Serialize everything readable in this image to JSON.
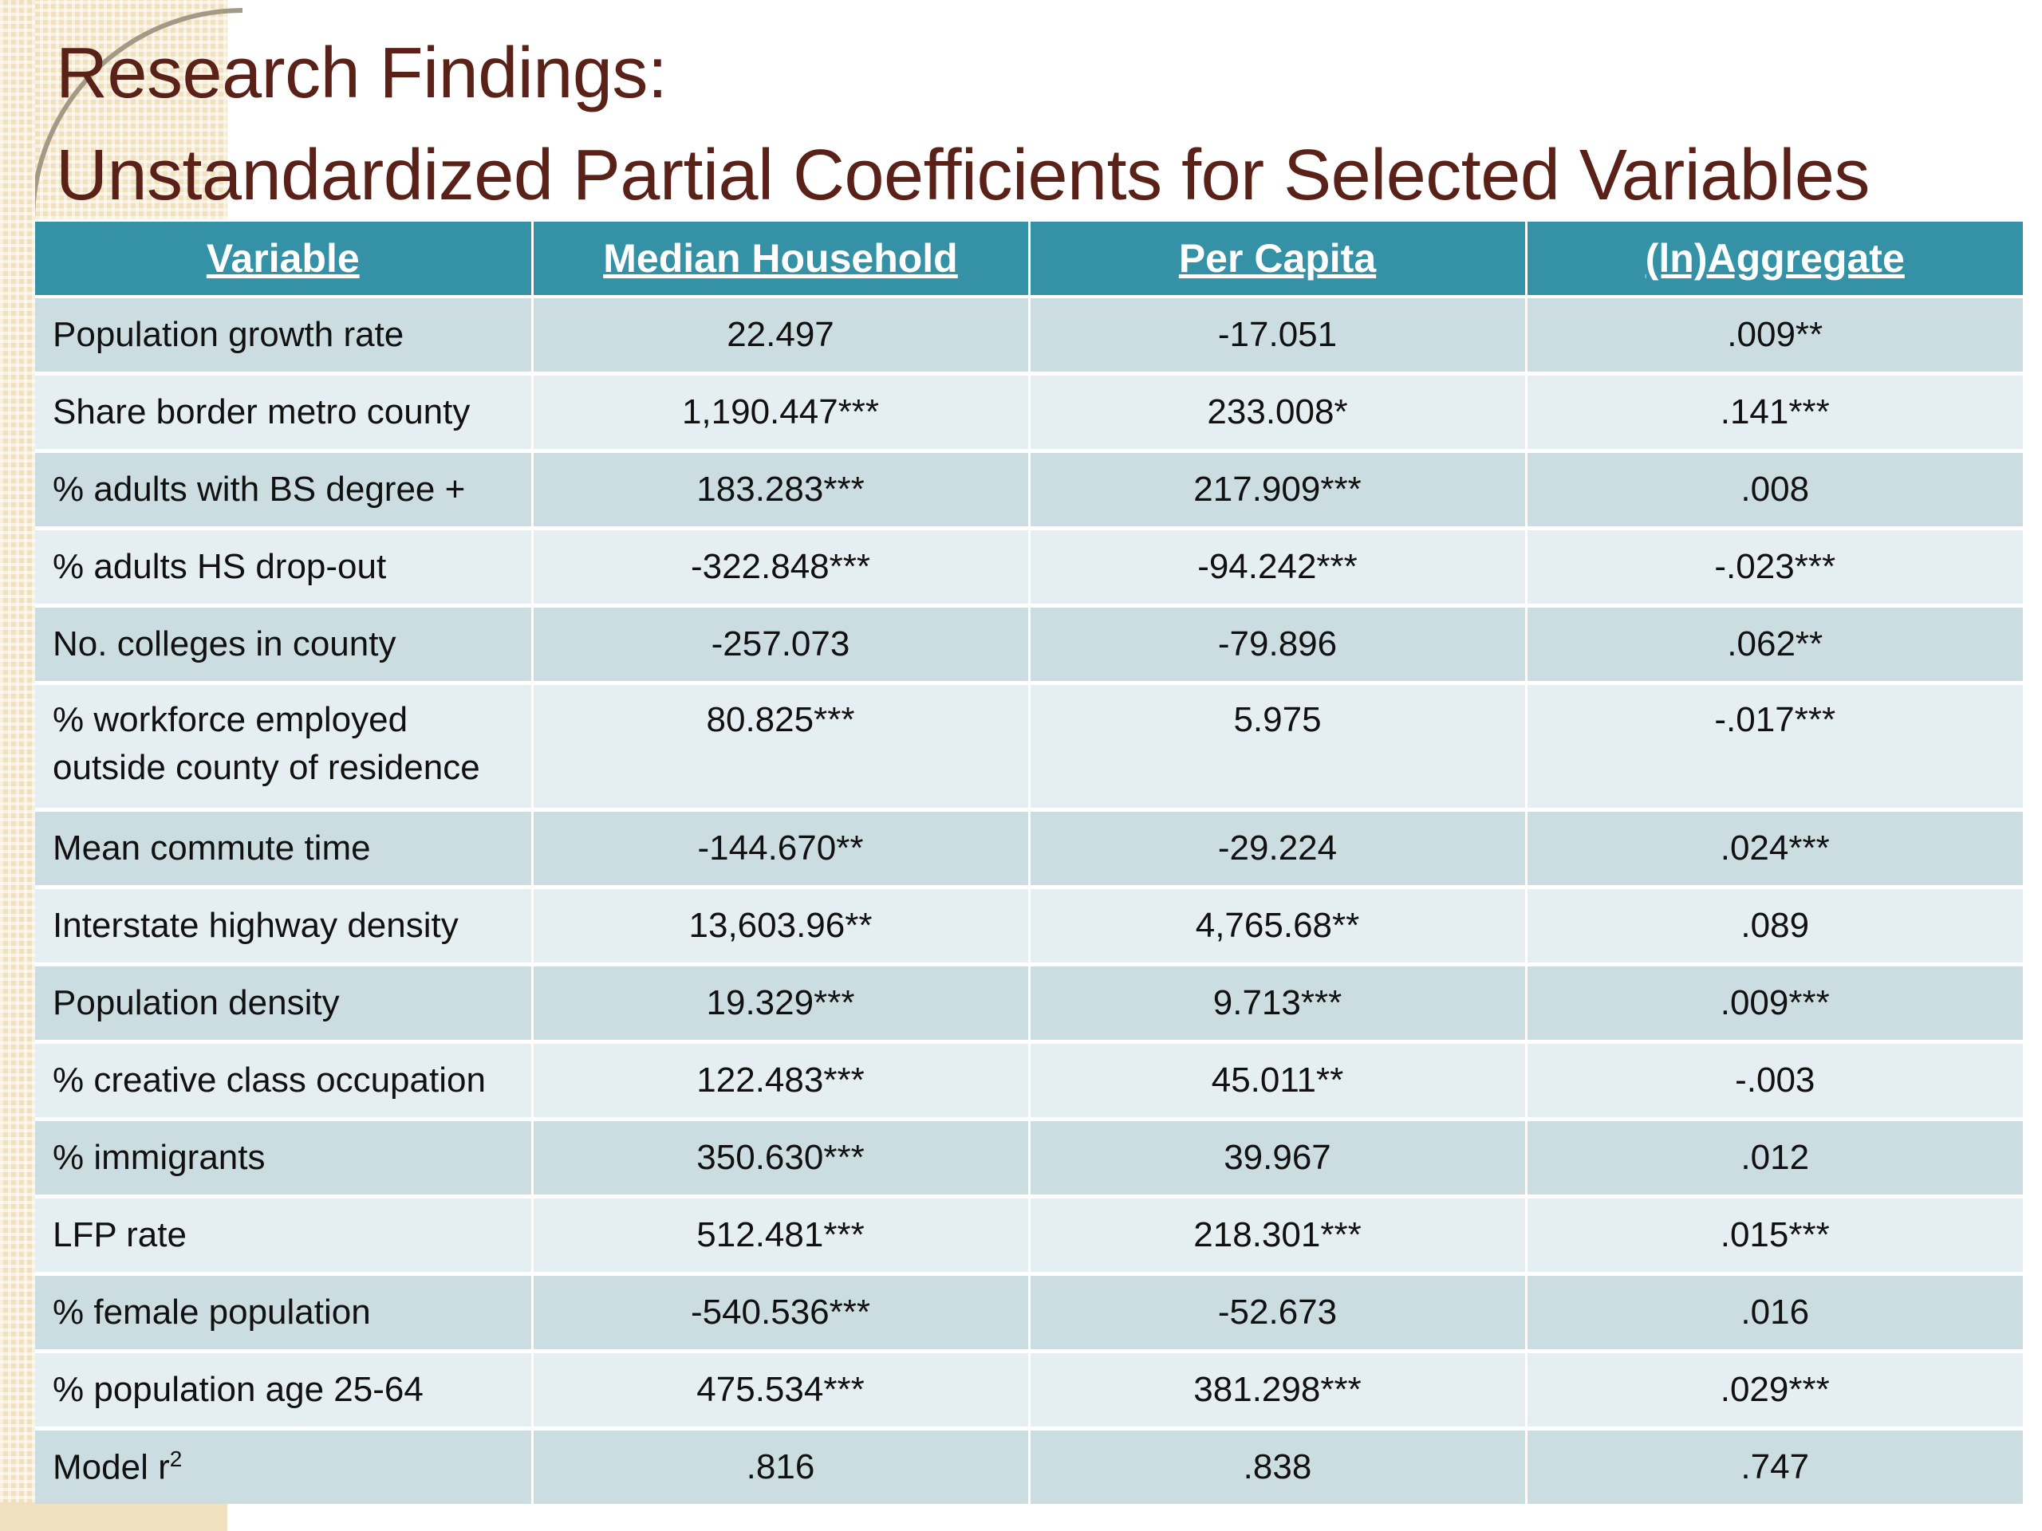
{
  "slide": {
    "title_line1": "Research Findings:",
    "title_line2": "Unstandardized Partial Coefficients for Selected Variables"
  },
  "table": {
    "headers": [
      "Variable",
      "Median Household",
      "Per Capita",
      "(ln)Aggregate"
    ],
    "rows": [
      [
        "Population growth rate",
        "22.497",
        "-17.051",
        ".009**"
      ],
      [
        "Share border metro county",
        "1,190.447***",
        "233.008*",
        ".141***"
      ],
      [
        "% adults with BS degree +",
        "183.283***",
        "217.909***",
        ".008"
      ],
      [
        "% adults HS drop-out",
        "-322.848***",
        "-94.242***",
        "-.023***"
      ],
      [
        "No. colleges in county",
        "-257.073",
        "-79.896",
        ".062**"
      ],
      [
        "% workforce employed outside county of residence",
        "80.825***",
        "5.975",
        "-.017***"
      ],
      [
        "Mean commute time",
        "-144.670**",
        "-29.224",
        ".024***"
      ],
      [
        "Interstate highway density",
        "13,603.96**",
        "4,765.68**",
        ".089"
      ],
      [
        "Population density",
        "19.329***",
        "9.713***",
        ".009***"
      ],
      [
        "% creative class occupation",
        "122.483***",
        "45.011**",
        "-.003"
      ],
      [
        "% immigrants",
        "350.630***",
        "39.967",
        ".012"
      ],
      [
        "LFP rate",
        "512.481***",
        "218.301***",
        ".015***"
      ],
      [
        "% female population",
        "-540.536***",
        "-52.673",
        ".016"
      ],
      [
        "% population age 25-64",
        "475.534***",
        "381.298***",
        ".029***"
      ]
    ],
    "model_row": {
      "label": "Model r",
      "label_sup": "2",
      "values": [
        ".816",
        ".838",
        ".747"
      ]
    }
  }
}
